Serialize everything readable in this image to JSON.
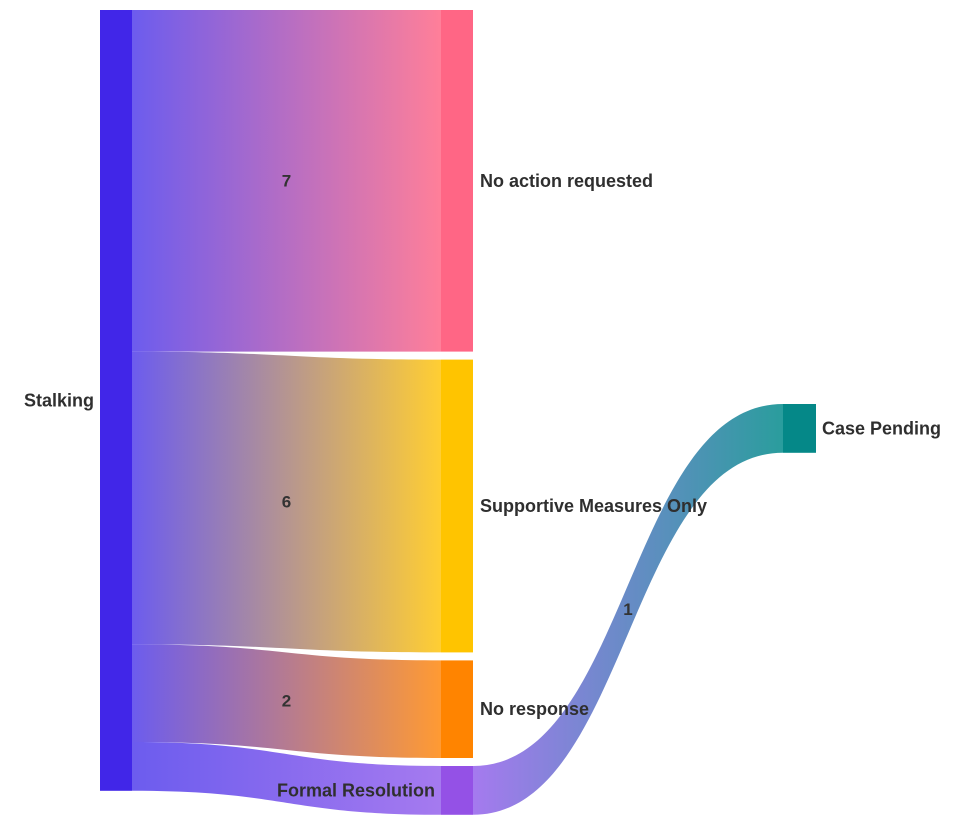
{
  "chart_data": {
    "type": "sankey",
    "nodes": [
      {
        "id": "stalking",
        "label": "Stalking",
        "color": "#4126E8",
        "column": 0
      },
      {
        "id": "no_action",
        "label": "No action requested",
        "color": "#FF6685",
        "column": 1
      },
      {
        "id": "supportive",
        "label": "Supportive Measures Only",
        "color": "#FFC400",
        "column": 1
      },
      {
        "id": "no_response",
        "label": "No response",
        "color": "#FF8400",
        "column": 1
      },
      {
        "id": "formal",
        "label": "Formal Resolution",
        "color": "#9451E6",
        "column": 1
      },
      {
        "id": "pending",
        "label": "Case Pending",
        "color": "#058888",
        "column": 2
      }
    ],
    "links": [
      {
        "source": "stalking",
        "target": "no_action",
        "value": 7,
        "label": "7",
        "color_from": "#6C5CEE",
        "color_to": "#FF7F99"
      },
      {
        "source": "stalking",
        "target": "supportive",
        "value": 6,
        "label": "6",
        "color_from": "#6C5CEE",
        "color_to": "#FFCE33"
      },
      {
        "source": "stalking",
        "target": "no_response",
        "value": 2,
        "label": "2",
        "color_from": "#6C5CEE",
        "color_to": "#FF9A33"
      },
      {
        "source": "stalking",
        "target": "formal",
        "value": 1,
        "label": "",
        "color_from": "#6C5CEE",
        "color_to": "#A57AEF"
      },
      {
        "source": "formal",
        "target": "pending",
        "value": 1,
        "label": "1",
        "color_from": "#A57AEF",
        "color_to": "#2A9D9D"
      }
    ]
  }
}
